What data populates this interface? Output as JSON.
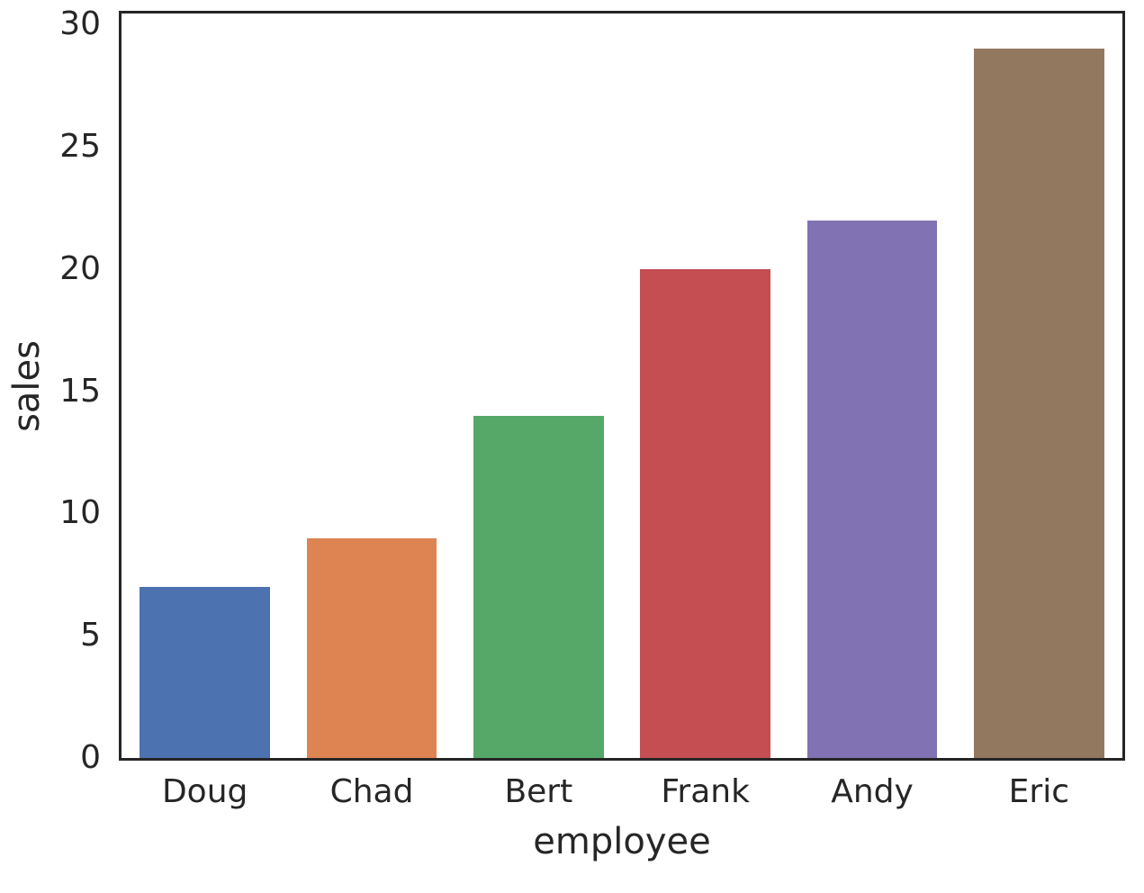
{
  "chart_data": {
    "type": "bar",
    "title": "",
    "categories": [
      "Doug",
      "Chad",
      "Bert",
      "Frank",
      "Andy",
      "Eric"
    ],
    "values": [
      7,
      9,
      14,
      20,
      22,
      29
    ],
    "xlabel": "employee",
    "ylabel": "sales",
    "yticks": [
      0,
      5,
      10,
      15,
      20,
      25,
      30
    ],
    "ylim": [
      0,
      30.45
    ],
    "grid": false,
    "legend_position": "none",
    "bar_colors": [
      "#4c72b0",
      "#dd8452",
      "#55a868",
      "#c44e52",
      "#8172b3",
      "#937860"
    ],
    "frame_color": "#262626",
    "text_color": "#262626",
    "background_color": "#ffffff",
    "bar_width_fraction": 0.78
  }
}
